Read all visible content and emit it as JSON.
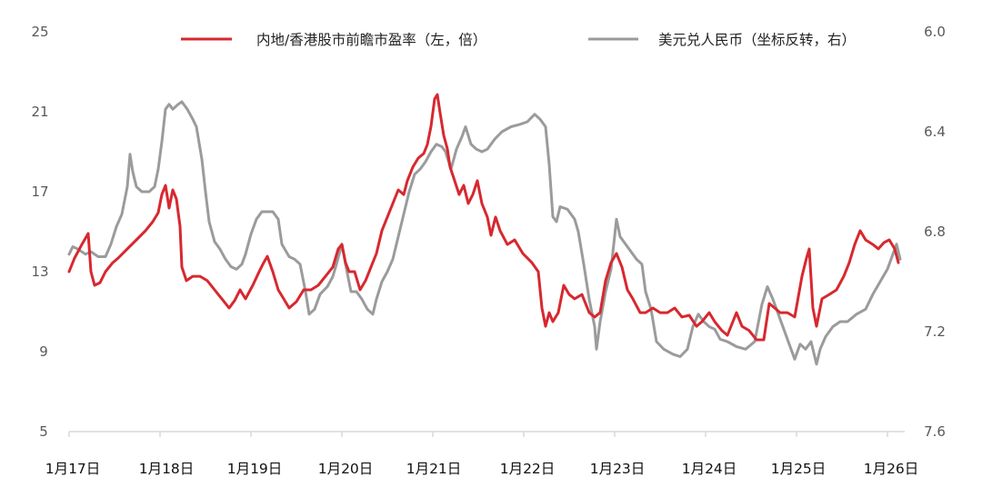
{
  "chart_data": {
    "type": "line",
    "title": "",
    "xlabel": "",
    "ylabel": "",
    "legend_position": "top",
    "grid": false,
    "x_tick_labels": [
      "1月17日",
      "1月18日",
      "1月19日",
      "1月20日",
      "1月21日",
      "1月22日",
      "1月23日",
      "1月24日",
      "1月25日",
      "1月26日"
    ],
    "left_axis": {
      "ticks": [
        "25",
        "21",
        "17",
        "13",
        "9",
        "5"
      ],
      "range": [
        5,
        25
      ]
    },
    "right_axis": {
      "ticks": [
        "6.0",
        "6.4",
        "6.8",
        "7.2",
        "7.6"
      ],
      "range": [
        6.0,
        7.6
      ],
      "inverted": true
    },
    "series": [
      {
        "name": "内地/香港股市前瞻市盈率（左，倍）",
        "axis": "left",
        "color": "#d7282f",
        "points": [
          [
            0,
            13.0
          ],
          [
            0.06,
            13.68
          ],
          [
            0.14,
            14.36
          ],
          [
            0.21,
            14.91
          ],
          [
            0.24,
            13.0
          ],
          [
            0.28,
            12.32
          ],
          [
            0.34,
            12.45
          ],
          [
            0.4,
            13.0
          ],
          [
            0.48,
            13.45
          ],
          [
            0.54,
            13.68
          ],
          [
            0.64,
            14.14
          ],
          [
            0.74,
            14.59
          ],
          [
            0.84,
            15.05
          ],
          [
            0.92,
            15.5
          ],
          [
            0.98,
            15.95
          ],
          [
            1.02,
            16.86
          ],
          [
            1.06,
            17.32
          ],
          [
            1.1,
            16.18
          ],
          [
            1.14,
            17.09
          ],
          [
            1.18,
            16.64
          ],
          [
            1.22,
            15.27
          ],
          [
            1.24,
            13.23
          ],
          [
            1.29,
            12.55
          ],
          [
            1.36,
            12.77
          ],
          [
            1.44,
            12.77
          ],
          [
            1.52,
            12.55
          ],
          [
            1.6,
            12.09
          ],
          [
            1.68,
            11.64
          ],
          [
            1.76,
            11.18
          ],
          [
            1.82,
            11.55
          ],
          [
            1.88,
            12.09
          ],
          [
            1.94,
            11.64
          ],
          [
            2.02,
            12.32
          ],
          [
            2.09,
            13.0
          ],
          [
            2.14,
            13.45
          ],
          [
            2.18,
            13.77
          ],
          [
            2.24,
            13.0
          ],
          [
            2.3,
            12.09
          ],
          [
            2.36,
            11.64
          ],
          [
            2.42,
            11.18
          ],
          [
            2.5,
            11.5
          ],
          [
            2.58,
            12.09
          ],
          [
            2.66,
            12.09
          ],
          [
            2.74,
            12.32
          ],
          [
            2.82,
            12.77
          ],
          [
            2.9,
            13.23
          ],
          [
            2.96,
            14.14
          ],
          [
            3.0,
            14.36
          ],
          [
            3.04,
            13.45
          ],
          [
            3.08,
            13.0
          ],
          [
            3.14,
            13.0
          ],
          [
            3.2,
            12.09
          ],
          [
            3.26,
            12.55
          ],
          [
            3.32,
            13.23
          ],
          [
            3.38,
            13.91
          ],
          [
            3.44,
            15.05
          ],
          [
            3.5,
            15.73
          ],
          [
            3.56,
            16.41
          ],
          [
            3.62,
            17.09
          ],
          [
            3.68,
            16.86
          ],
          [
            3.72,
            17.55
          ],
          [
            3.78,
            18.23
          ],
          [
            3.84,
            18.68
          ],
          [
            3.9,
            18.91
          ],
          [
            3.94,
            19.36
          ],
          [
            3.98,
            20.27
          ],
          [
            4.02,
            21.64
          ],
          [
            4.05,
            21.86
          ],
          [
            4.08,
            20.95
          ],
          [
            4.12,
            19.82
          ],
          [
            4.16,
            19.14
          ],
          [
            4.19,
            18.23
          ],
          [
            4.24,
            17.55
          ],
          [
            4.29,
            16.86
          ],
          [
            4.34,
            17.32
          ],
          [
            4.39,
            16.41
          ],
          [
            4.44,
            16.86
          ],
          [
            4.49,
            17.55
          ],
          [
            4.54,
            16.41
          ],
          [
            4.6,
            15.73
          ],
          [
            4.64,
            14.82
          ],
          [
            4.69,
            15.73
          ],
          [
            4.74,
            15.05
          ],
          [
            4.82,
            14.36
          ],
          [
            4.9,
            14.59
          ],
          [
            4.99,
            13.91
          ],
          [
            5.09,
            13.45
          ],
          [
            5.16,
            13.0
          ],
          [
            5.2,
            11.18
          ],
          [
            5.24,
            10.27
          ],
          [
            5.28,
            10.95
          ],
          [
            5.32,
            10.5
          ],
          [
            5.38,
            10.95
          ],
          [
            5.44,
            12.32
          ],
          [
            5.5,
            11.86
          ],
          [
            5.56,
            11.64
          ],
          [
            5.64,
            11.86
          ],
          [
            5.72,
            10.95
          ],
          [
            5.78,
            10.73
          ],
          [
            5.84,
            10.95
          ],
          [
            5.9,
            12.55
          ],
          [
            5.96,
            13.45
          ],
          [
            6.02,
            13.91
          ],
          [
            6.08,
            13.23
          ],
          [
            6.14,
            12.09
          ],
          [
            6.2,
            11.64
          ],
          [
            6.28,
            10.95
          ],
          [
            6.34,
            10.95
          ],
          [
            6.42,
            11.18
          ],
          [
            6.5,
            10.95
          ],
          [
            6.58,
            10.95
          ],
          [
            6.66,
            11.18
          ],
          [
            6.74,
            10.73
          ],
          [
            6.82,
            10.82
          ],
          [
            6.9,
            10.27
          ],
          [
            6.96,
            10.5
          ],
          [
            7.04,
            10.95
          ],
          [
            7.1,
            10.5
          ],
          [
            7.18,
            10.05
          ],
          [
            7.24,
            9.82
          ],
          [
            7.3,
            10.5
          ],
          [
            7.34,
            10.95
          ],
          [
            7.4,
            10.27
          ],
          [
            7.48,
            10.05
          ],
          [
            7.56,
            9.59
          ],
          [
            7.64,
            9.59
          ],
          [
            7.7,
            11.41
          ],
          [
            7.76,
            11.18
          ],
          [
            7.82,
            10.95
          ],
          [
            7.9,
            10.95
          ],
          [
            7.98,
            10.73
          ],
          [
            8.06,
            12.77
          ],
          [
            8.11,
            13.68
          ],
          [
            8.14,
            14.14
          ],
          [
            8.18,
            11.18
          ],
          [
            8.22,
            10.27
          ],
          [
            8.28,
            11.64
          ],
          [
            8.36,
            11.86
          ],
          [
            8.44,
            12.09
          ],
          [
            8.52,
            12.77
          ],
          [
            8.58,
            13.45
          ],
          [
            8.64,
            14.36
          ],
          [
            8.7,
            15.05
          ],
          [
            8.76,
            14.59
          ],
          [
            8.84,
            14.36
          ],
          [
            8.9,
            14.14
          ],
          [
            8.96,
            14.45
          ],
          [
            9.02,
            14.59
          ],
          [
            9.08,
            14.14
          ],
          [
            9.12,
            13.45
          ]
        ]
      },
      {
        "name": "美元兑人民币（坐标反转，右）",
        "axis": "right",
        "color": "#9b9b9b",
        "points": [
          [
            0,
            6.89
          ],
          [
            0.04,
            6.86
          ],
          [
            0.1,
            6.87
          ],
          [
            0.18,
            6.89
          ],
          [
            0.24,
            6.88
          ],
          [
            0.32,
            6.9
          ],
          [
            0.4,
            6.9
          ],
          [
            0.46,
            6.85
          ],
          [
            0.52,
            6.78
          ],
          [
            0.58,
            6.73
          ],
          [
            0.64,
            6.62
          ],
          [
            0.67,
            6.49
          ],
          [
            0.7,
            6.56
          ],
          [
            0.74,
            6.62
          ],
          [
            0.8,
            6.64
          ],
          [
            0.88,
            6.64
          ],
          [
            0.94,
            6.62
          ],
          [
            0.98,
            6.55
          ],
          [
            1.02,
            6.44
          ],
          [
            1.06,
            6.31
          ],
          [
            1.1,
            6.29
          ],
          [
            1.14,
            6.31
          ],
          [
            1.2,
            6.29
          ],
          [
            1.24,
            6.28
          ],
          [
            1.3,
            6.31
          ],
          [
            1.36,
            6.35
          ],
          [
            1.4,
            6.38
          ],
          [
            1.46,
            6.51
          ],
          [
            1.5,
            6.64
          ],
          [
            1.54,
            6.76
          ],
          [
            1.6,
            6.84
          ],
          [
            1.66,
            6.87
          ],
          [
            1.72,
            6.91
          ],
          [
            1.78,
            6.94
          ],
          [
            1.84,
            6.95
          ],
          [
            1.9,
            6.93
          ],
          [
            1.94,
            6.89
          ],
          [
            2.0,
            6.81
          ],
          [
            2.06,
            6.75
          ],
          [
            2.12,
            6.72
          ],
          [
            2.18,
            6.72
          ],
          [
            2.24,
            6.72
          ],
          [
            2.3,
            6.75
          ],
          [
            2.34,
            6.85
          ],
          [
            2.42,
            6.9
          ],
          [
            2.48,
            6.91
          ],
          [
            2.54,
            6.93
          ],
          [
            2.6,
            7.04
          ],
          [
            2.64,
            7.13
          ],
          [
            2.7,
            7.11
          ],
          [
            2.76,
            7.05
          ],
          [
            2.84,
            7.02
          ],
          [
            2.9,
            6.98
          ],
          [
            2.94,
            6.93
          ],
          [
            3.0,
            6.85
          ],
          [
            3.04,
            6.93
          ],
          [
            3.1,
            7.04
          ],
          [
            3.16,
            7.04
          ],
          [
            3.22,
            7.07
          ],
          [
            3.28,
            7.11
          ],
          [
            3.34,
            7.13
          ],
          [
            3.38,
            7.07
          ],
          [
            3.44,
            7.0
          ],
          [
            3.5,
            6.96
          ],
          [
            3.56,
            6.91
          ],
          [
            3.62,
            6.82
          ],
          [
            3.68,
            6.73
          ],
          [
            3.74,
            6.64
          ],
          [
            3.8,
            6.57
          ],
          [
            3.86,
            6.55
          ],
          [
            3.92,
            6.52
          ],
          [
            3.98,
            6.48
          ],
          [
            4.04,
            6.45
          ],
          [
            4.1,
            6.46
          ],
          [
            4.14,
            6.48
          ],
          [
            4.2,
            6.55
          ],
          [
            4.26,
            6.47
          ],
          [
            4.32,
            6.42
          ],
          [
            4.36,
            6.38
          ],
          [
            4.42,
            6.45
          ],
          [
            4.48,
            6.47
          ],
          [
            4.54,
            6.48
          ],
          [
            4.6,
            6.47
          ],
          [
            4.68,
            6.43
          ],
          [
            4.76,
            6.4
          ],
          [
            4.86,
            6.38
          ],
          [
            4.96,
            6.37
          ],
          [
            5.04,
            6.36
          ],
          [
            5.12,
            6.33
          ],
          [
            5.18,
            6.35
          ],
          [
            5.24,
            6.38
          ],
          [
            5.28,
            6.53
          ],
          [
            5.32,
            6.74
          ],
          [
            5.36,
            6.76
          ],
          [
            5.4,
            6.7
          ],
          [
            5.48,
            6.71
          ],
          [
            5.56,
            6.75
          ],
          [
            5.6,
            6.8
          ],
          [
            5.66,
            6.93
          ],
          [
            5.72,
            7.07
          ],
          [
            5.78,
            7.18
          ],
          [
            5.8,
            7.27
          ],
          [
            5.84,
            7.16
          ],
          [
            5.9,
            7.04
          ],
          [
            5.96,
            6.95
          ],
          [
            6.02,
            6.75
          ],
          [
            6.06,
            6.82
          ],
          [
            6.12,
            6.85
          ],
          [
            6.16,
            6.87
          ],
          [
            6.24,
            6.91
          ],
          [
            6.3,
            6.93
          ],
          [
            6.34,
            7.04
          ],
          [
            6.4,
            7.11
          ],
          [
            6.46,
            7.24
          ],
          [
            6.54,
            7.27
          ],
          [
            6.64,
            7.29
          ],
          [
            6.72,
            7.3
          ],
          [
            6.8,
            7.27
          ],
          [
            6.86,
            7.18
          ],
          [
            6.92,
            7.13
          ],
          [
            6.98,
            7.16
          ],
          [
            7.04,
            7.18
          ],
          [
            7.1,
            7.19
          ],
          [
            7.16,
            7.23
          ],
          [
            7.24,
            7.24
          ],
          [
            7.34,
            7.26
          ],
          [
            7.44,
            7.27
          ],
          [
            7.54,
            7.24
          ],
          [
            7.62,
            7.09
          ],
          [
            7.68,
            7.02
          ],
          [
            7.74,
            7.07
          ],
          [
            7.8,
            7.13
          ],
          [
            7.86,
            7.19
          ],
          [
            7.92,
            7.25
          ],
          [
            7.98,
            7.31
          ],
          [
            8.04,
            7.25
          ],
          [
            8.1,
            7.27
          ],
          [
            8.16,
            7.24
          ],
          [
            8.22,
            7.33
          ],
          [
            8.26,
            7.27
          ],
          [
            8.32,
            7.22
          ],
          [
            8.4,
            7.18
          ],
          [
            8.48,
            7.16
          ],
          [
            8.56,
            7.16
          ],
          [
            8.66,
            7.13
          ],
          [
            8.76,
            7.11
          ],
          [
            8.84,
            7.05
          ],
          [
            8.92,
            7.0
          ],
          [
            9.0,
            6.95
          ],
          [
            9.06,
            6.89
          ],
          [
            9.1,
            6.85
          ],
          [
            9.14,
            6.91
          ]
        ]
      }
    ]
  },
  "legend": {
    "items": [
      {
        "label": "内地/香港股市前瞻市盈率（左，倍）",
        "color": "#d7282f"
      },
      {
        "label": "美元兑人民币（坐标反转，右）",
        "color": "#9b9b9b"
      }
    ]
  }
}
